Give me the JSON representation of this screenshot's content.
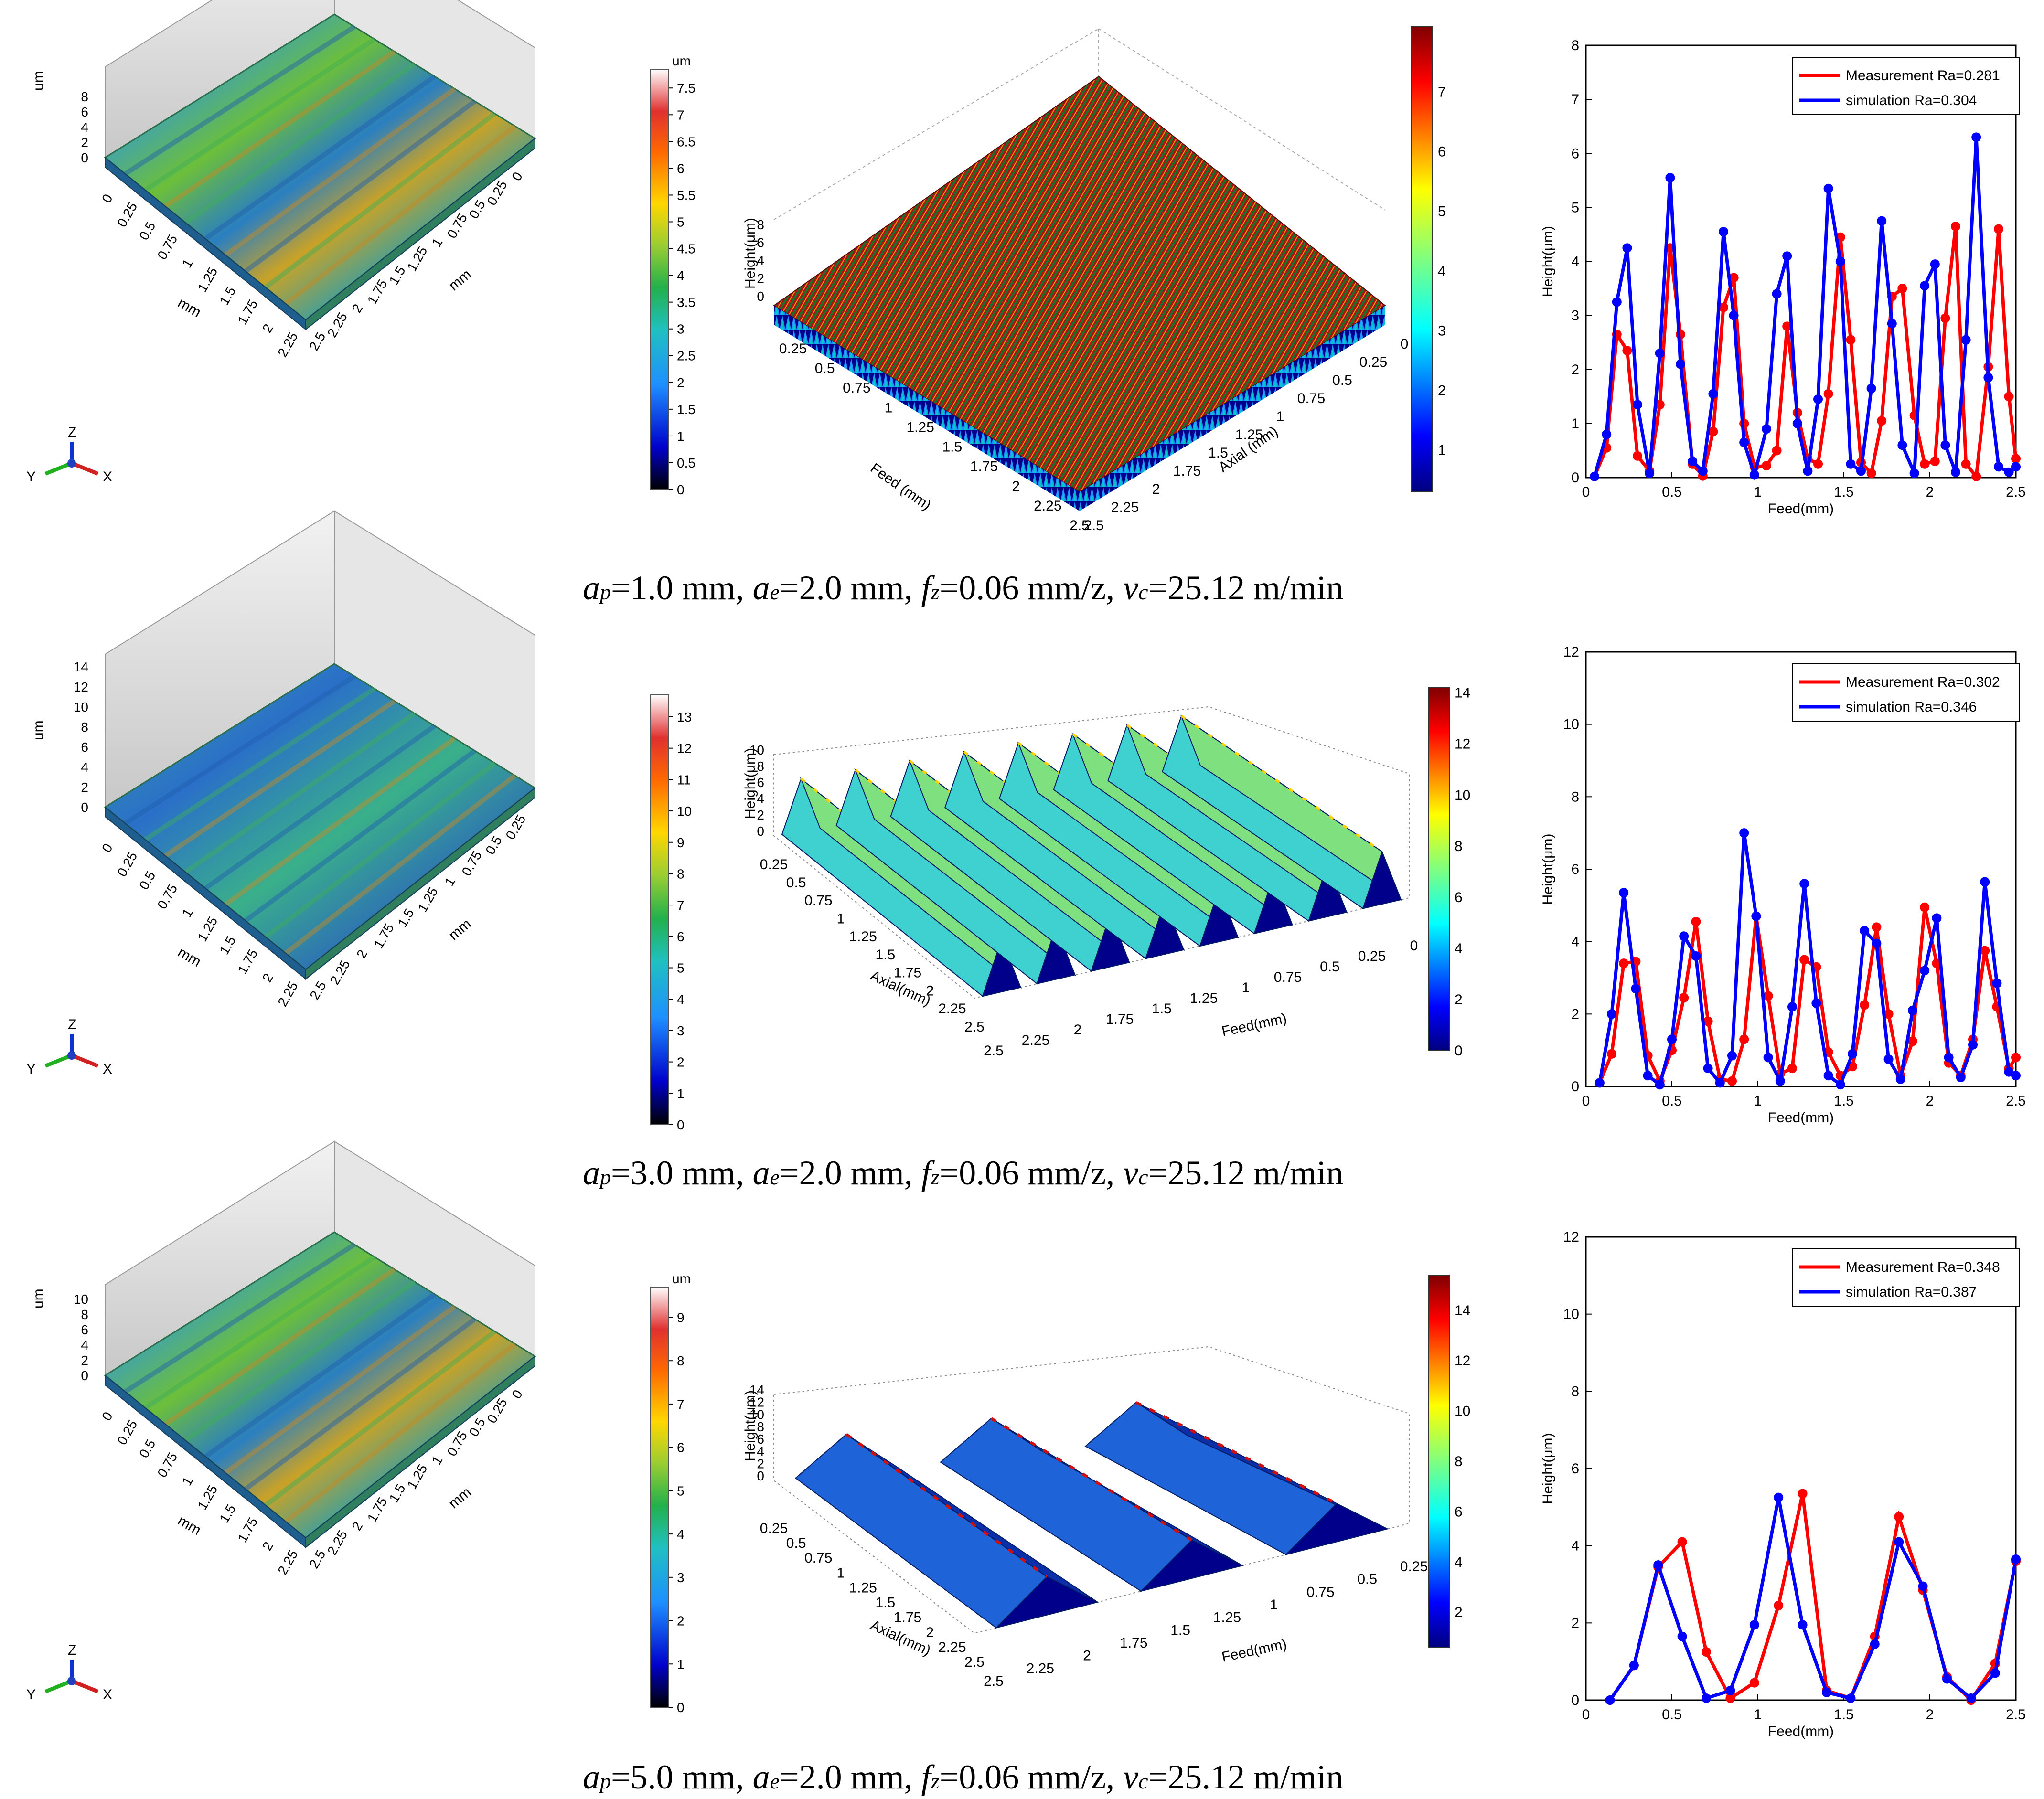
{
  "colors": {
    "measurement": "#ff0000",
    "simulation": "#0000ff",
    "surface_dark": "#00008b",
    "surface_red": "#cc1a00"
  },
  "rows": [
    {
      "caption": {
        "ap_sym": "a",
        "ap_sub": "p",
        "ap_rest": "=1.0 mm, ",
        "ae_sym": "a",
        "ae_sub": "e",
        "ae_rest": "=2.0 mm, ",
        "fz_sym": "f",
        "fz_sub": "z",
        "fz_rest": "=0.06 mm/z, ",
        "vc_sym": "v",
        "vc_sub": "c",
        "vc_rest": "=25.12 m/min"
      },
      "measured": {
        "z_unit": "um",
        "z_ticks": [
          "0",
          "2",
          "4",
          "6",
          "8"
        ],
        "x_label": "mm",
        "y_label": "mm",
        "x_ticks": [
          "0",
          "0.25",
          "0.5",
          "0.75",
          "1",
          "1.25",
          "1.5",
          "1.75",
          "2",
          "2.25"
        ],
        "y_ticks": [
          "2.5",
          "2.25",
          "2",
          "1.75",
          "1.5",
          "1.25",
          "1",
          "0.75",
          "0.5",
          "0.25",
          "0"
        ],
        "colorbar": {
          "unit": "um",
          "ticks": [
            "0",
            "0.5",
            "1",
            "1.5",
            "2",
            "2.5",
            "3",
            "3.5",
            "4",
            "4.5",
            "5",
            "5.5",
            "6",
            "6.5",
            "7",
            "7.5"
          ]
        },
        "axes_labels": {
          "x": "X",
          "y": "Y",
          "z": "Z"
        }
      },
      "simulated": {
        "z_label": "Height(μm)",
        "z_ticks": [
          "0",
          "2",
          "4",
          "6",
          "8"
        ],
        "x_label": "Feed (mm)",
        "x_ticks": [
          "0.25",
          "0.5",
          "0.75",
          "1",
          "1.25",
          "1.5",
          "1.75",
          "2",
          "2.25",
          "2.5"
        ],
        "y_label": "Axial (mm)",
        "y_ticks": [
          "2.5",
          "2.25",
          "2",
          "1.75",
          "1.5",
          "1.25",
          "1",
          "0.75",
          "0.5",
          "0.25",
          "0"
        ],
        "colorbar": {
          "ticks": [
            "1",
            "2",
            "3",
            "4",
            "5",
            "6",
            "7"
          ]
        }
      }
    },
    {
      "caption": {
        "ap_sym": "a",
        "ap_sub": "p",
        "ap_rest": "=3.0 mm, ",
        "ae_sym": "a",
        "ae_sub": "e",
        "ae_rest": "=2.0 mm, ",
        "fz_sym": "f",
        "fz_sub": "z",
        "fz_rest": "=0.06 mm/z, ",
        "vc_sym": "v",
        "vc_sub": "c",
        "vc_rest": "=25.12 m/min"
      },
      "measured": {
        "z_unit": "um",
        "z_ticks": [
          "0",
          "2",
          "4",
          "6",
          "8",
          "10",
          "12",
          "14"
        ],
        "x_label": "mm",
        "y_label": "mm",
        "x_ticks": [
          "0",
          "0.25",
          "0.5",
          "0.75",
          "1",
          "1.25",
          "1.5",
          "1.75",
          "2",
          "2.25"
        ],
        "y_ticks": [
          "2.5",
          "2.25",
          "2",
          "1.75",
          "1.5",
          "1.25",
          "1",
          "0.75",
          "0.5",
          "0.25"
        ],
        "colorbar": {
          "unit": "",
          "ticks": [
            "0",
            "1",
            "2",
            "3",
            "4",
            "5",
            "6",
            "7",
            "8",
            "9",
            "10",
            "11",
            "12",
            "13"
          ]
        },
        "axes_labels": {
          "x": "X",
          "y": "Y",
          "z": "Z"
        }
      },
      "simulated": {
        "z_label": "Height(μm)",
        "z_ticks": [
          "0",
          "2",
          "4",
          "6",
          "8",
          "10"
        ],
        "x_label": "Feed(mm)",
        "x_ticks": [
          "2.5",
          "2.25",
          "2",
          "1.75",
          "1.5",
          "1.25",
          "1",
          "0.75",
          "0.5",
          "0.25",
          "0"
        ],
        "y_label": "Axial(mm)",
        "y_ticks": [
          "0.25",
          "0.5",
          "0.75",
          "1",
          "1.25",
          "1.5",
          "1.75",
          "2",
          "2.25",
          "2.5"
        ],
        "colorbar": {
          "ticks": [
            "0",
            "2",
            "4",
            "6",
            "8",
            "10",
            "12",
            "14"
          ]
        }
      }
    },
    {
      "caption": {
        "ap_sym": "a",
        "ap_sub": "p",
        "ap_rest": "=5.0 mm, ",
        "ae_sym": "a",
        "ae_sub": "e",
        "ae_rest": "=2.0 mm, ",
        "fz_sym": "f",
        "fz_sub": "z",
        "fz_rest": "=0.06 mm/z, ",
        "vc_sym": "v",
        "vc_sub": "c",
        "vc_rest": "=25.12 m/min"
      },
      "measured": {
        "z_unit": "um",
        "z_ticks": [
          "0",
          "2",
          "4",
          "6",
          "8",
          "10"
        ],
        "x_label": "mm",
        "y_label": "mm",
        "x_ticks": [
          "0",
          "0.25",
          "0.5",
          "0.75",
          "1",
          "1.25",
          "1.5",
          "1.75",
          "2",
          "2.25"
        ],
        "y_ticks": [
          "2.5",
          "2.25",
          "2",
          "1.75",
          "1.5",
          "1.25",
          "1",
          "0.75",
          "0.5",
          "0.25",
          "0"
        ],
        "colorbar": {
          "unit": "um",
          "ticks": [
            "0",
            "1",
            "2",
            "3",
            "4",
            "5",
            "6",
            "7",
            "8",
            "9"
          ]
        },
        "axes_labels": {
          "x": "X",
          "y": "Y",
          "z": "Z"
        }
      },
      "simulated": {
        "z_label": "Height(μm)",
        "z_ticks": [
          "0",
          "2",
          "4",
          "6",
          "8",
          "10",
          "12",
          "14"
        ],
        "x_label": "Feed(mm)",
        "x_ticks": [
          "2.5",
          "2.25",
          "2",
          "1.75",
          "1.5",
          "1.25",
          "1",
          "0.75",
          "0.5",
          "0.25"
        ],
        "y_label": "Axial(mm)",
        "y_ticks": [
          "0.25",
          "0.5",
          "0.75",
          "1",
          "1.25",
          "1.5",
          "1.75",
          "2",
          "2.25",
          "2.5"
        ],
        "colorbar": {
          "ticks": [
            "2",
            "4",
            "6",
            "8",
            "10",
            "12",
            "14"
          ]
        }
      }
    }
  ],
  "chart_data": [
    {
      "type": "line",
      "xlabel": "Feed(mm)",
      "ylabel": "Height(μm)",
      "xlim": [
        0,
        2.5
      ],
      "ylim": [
        0,
        8
      ],
      "xticks": [
        "0",
        "0.5",
        "1",
        "1.5",
        "2",
        "2.5"
      ],
      "yticks": [
        "0",
        "1",
        "2",
        "3",
        "4",
        "5",
        "6",
        "7",
        "8"
      ],
      "legend": "top-right",
      "series": [
        {
          "name": "Measurement Ra=0.281",
          "x": [
            0.05,
            0.12,
            0.18,
            0.24,
            0.3,
            0.37,
            0.43,
            0.49,
            0.55,
            0.62,
            0.68,
            0.74,
            0.8,
            0.86,
            0.92,
            0.98,
            1.05,
            1.11,
            1.17,
            1.23,
            1.29,
            1.35,
            1.41,
            1.48,
            1.54,
            1.6,
            1.66,
            1.72,
            1.78,
            1.84,
            1.91,
            1.97,
            2.03,
            2.09,
            2.15,
            2.21,
            2.27,
            2.34,
            2.4,
            2.46,
            2.5
          ],
          "y": [
            0.02,
            0.55,
            2.65,
            2.35,
            0.4,
            0.12,
            1.35,
            4.25,
            2.65,
            0.25,
            0.03,
            0.85,
            3.15,
            3.7,
            1.0,
            0.2,
            0.22,
            0.5,
            2.8,
            1.2,
            0.35,
            0.25,
            1.55,
            4.45,
            2.55,
            0.28,
            0.08,
            1.05,
            3.35,
            3.5,
            1.15,
            0.25,
            0.3,
            2.95,
            4.65,
            0.25,
            0.02,
            2.05,
            4.6,
            1.5,
            0.35
          ]
        },
        {
          "name": "simulation Ra=0.304",
          "x": [
            0.05,
            0.12,
            0.18,
            0.24,
            0.3,
            0.37,
            0.43,
            0.49,
            0.55,
            0.62,
            0.68,
            0.74,
            0.8,
            0.86,
            0.92,
            0.98,
            1.05,
            1.11,
            1.17,
            1.23,
            1.29,
            1.35,
            1.41,
            1.48,
            1.54,
            1.6,
            1.66,
            1.72,
            1.78,
            1.84,
            1.91,
            1.97,
            2.03,
            2.09,
            2.15,
            2.21,
            2.27,
            2.34,
            2.4,
            2.46,
            2.5
          ],
          "y": [
            0.02,
            0.8,
            3.25,
            4.25,
            1.35,
            0.08,
            2.3,
            5.55,
            2.1,
            0.3,
            0.12,
            1.55,
            4.55,
            3.0,
            0.65,
            0.05,
            0.9,
            3.4,
            4.1,
            1.0,
            0.12,
            1.45,
            5.35,
            4.0,
            0.25,
            0.12,
            1.65,
            4.75,
            2.85,
            0.6,
            0.08,
            3.55,
            3.95,
            0.6,
            0.1,
            2.55,
            6.3,
            1.85,
            0.2,
            0.1,
            0.2
          ]
        }
      ]
    },
    {
      "type": "line",
      "xlabel": "Feed(mm)",
      "ylabel": "Height(μm)",
      "xlim": [
        0,
        2.5
      ],
      "ylim": [
        0,
        12
      ],
      "xticks": [
        "0",
        "0.5",
        "1",
        "1.5",
        "2",
        "2.5"
      ],
      "yticks": [
        "0",
        "2",
        "4",
        "6",
        "8",
        "10",
        "12"
      ],
      "legend": "top-right",
      "series": [
        {
          "name": "Measurement Ra=0.302",
          "x": [
            0.08,
            0.15,
            0.22,
            0.29,
            0.36,
            0.43,
            0.5,
            0.57,
            0.64,
            0.71,
            0.78,
            0.85,
            0.92,
            0.99,
            1.06,
            1.13,
            1.2,
            1.27,
            1.34,
            1.41,
            1.48,
            1.55,
            1.62,
            1.69,
            1.76,
            1.83,
            1.9,
            1.97,
            2.04,
            2.11,
            2.18,
            2.25,
            2.32,
            2.39,
            2.46,
            2.5
          ],
          "y": [
            0.1,
            0.9,
            3.4,
            3.45,
            0.85,
            0.15,
            1.0,
            2.45,
            4.55,
            1.8,
            0.2,
            0.15,
            1.3,
            4.7,
            2.5,
            0.35,
            0.5,
            3.5,
            3.3,
            0.95,
            0.3,
            0.55,
            2.25,
            4.4,
            2.0,
            0.3,
            1.25,
            4.95,
            3.4,
            0.65,
            0.3,
            1.3,
            3.75,
            2.2,
            0.5,
            0.8
          ]
        },
        {
          "name": "simulation Ra=0.346",
          "x": [
            0.08,
            0.15,
            0.22,
            0.29,
            0.36,
            0.43,
            0.5,
            0.57,
            0.64,
            0.71,
            0.78,
            0.85,
            0.92,
            0.99,
            1.06,
            1.13,
            1.2,
            1.27,
            1.34,
            1.41,
            1.48,
            1.55,
            1.62,
            1.69,
            1.76,
            1.83,
            1.9,
            1.97,
            2.04,
            2.11,
            2.18,
            2.25,
            2.32,
            2.39,
            2.46,
            2.5
          ],
          "y": [
            0.1,
            2.0,
            5.35,
            2.7,
            0.3,
            0.05,
            1.3,
            4.15,
            3.6,
            0.5,
            0.1,
            0.85,
            7.0,
            4.7,
            0.8,
            0.15,
            2.2,
            5.6,
            2.3,
            0.3,
            0.05,
            0.9,
            4.3,
            3.95,
            0.75,
            0.2,
            2.1,
            3.2,
            4.65,
            0.8,
            0.25,
            1.15,
            5.65,
            2.85,
            0.4,
            0.3
          ]
        }
      ]
    },
    {
      "type": "line",
      "xlabel": "Feed(mm)",
      "ylabel": "Height(μm)",
      "xlim": [
        0,
        2.5
      ],
      "ylim": [
        0,
        12
      ],
      "xticks": [
        "0",
        "0.5",
        "1",
        "1.5",
        "2",
        "2.5"
      ],
      "yticks": [
        "0",
        "2",
        "4",
        "6",
        "8",
        "10",
        "12"
      ],
      "legend": "top-right",
      "series": [
        {
          "name": "Measurement Ra=0.348",
          "x": [
            0.14,
            0.28,
            0.42,
            0.56,
            0.7,
            0.84,
            0.98,
            1.12,
            1.26,
            1.4,
            1.54,
            1.68,
            1.82,
            1.96,
            2.1,
            2.24,
            2.38,
            2.5
          ],
          "y": [
            0.0,
            0.9,
            3.45,
            4.1,
            1.25,
            0.05,
            0.45,
            2.45,
            5.35,
            0.25,
            0.05,
            1.65,
            4.75,
            2.85,
            0.6,
            0.0,
            0.95,
            3.6
          ]
        },
        {
          "name": "simulation Ra=0.387",
          "x": [
            0.14,
            0.28,
            0.42,
            0.56,
            0.7,
            0.84,
            0.98,
            1.12,
            1.26,
            1.4,
            1.54,
            1.68,
            1.82,
            1.96,
            2.1,
            2.24,
            2.38,
            2.5
          ],
          "y": [
            0.0,
            0.9,
            3.5,
            1.65,
            0.05,
            0.25,
            1.95,
            5.25,
            1.95,
            0.2,
            0.05,
            1.45,
            4.1,
            2.95,
            0.55,
            0.05,
            0.7,
            3.65
          ]
        }
      ]
    }
  ]
}
